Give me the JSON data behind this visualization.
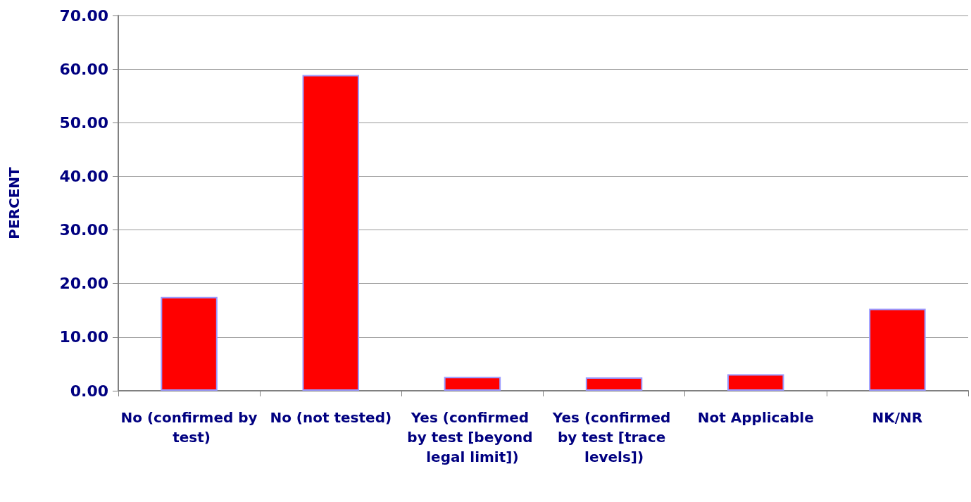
{
  "chart_data": {
    "type": "bar",
    "ylabel": "PERCENT",
    "categories": [
      "No (confirmed by test)",
      "No (not tested)",
      "Yes (confirmed by test [beyond legal limit])",
      "Yes (confirmed by test [trace levels])",
      "Not Applicable",
      "NK/NR"
    ],
    "values": [
      17.5,
      58.9,
      2.6,
      2.5,
      3.1,
      15.3
    ],
    "color": "#ff0000",
    "ylim": [
      0,
      70
    ],
    "yticks": [
      {
        "value": 0,
        "label": "0.00"
      },
      {
        "value": 10,
        "label": "10.00"
      },
      {
        "value": 20,
        "label": "20.00"
      },
      {
        "value": 30,
        "label": "30.00"
      },
      {
        "value": 40,
        "label": "40.00"
      },
      {
        "value": 50,
        "label": "50.00"
      },
      {
        "value": 60,
        "label": "60.00"
      },
      {
        "value": 70,
        "label": "70.00"
      }
    ],
    "grid": "y"
  }
}
